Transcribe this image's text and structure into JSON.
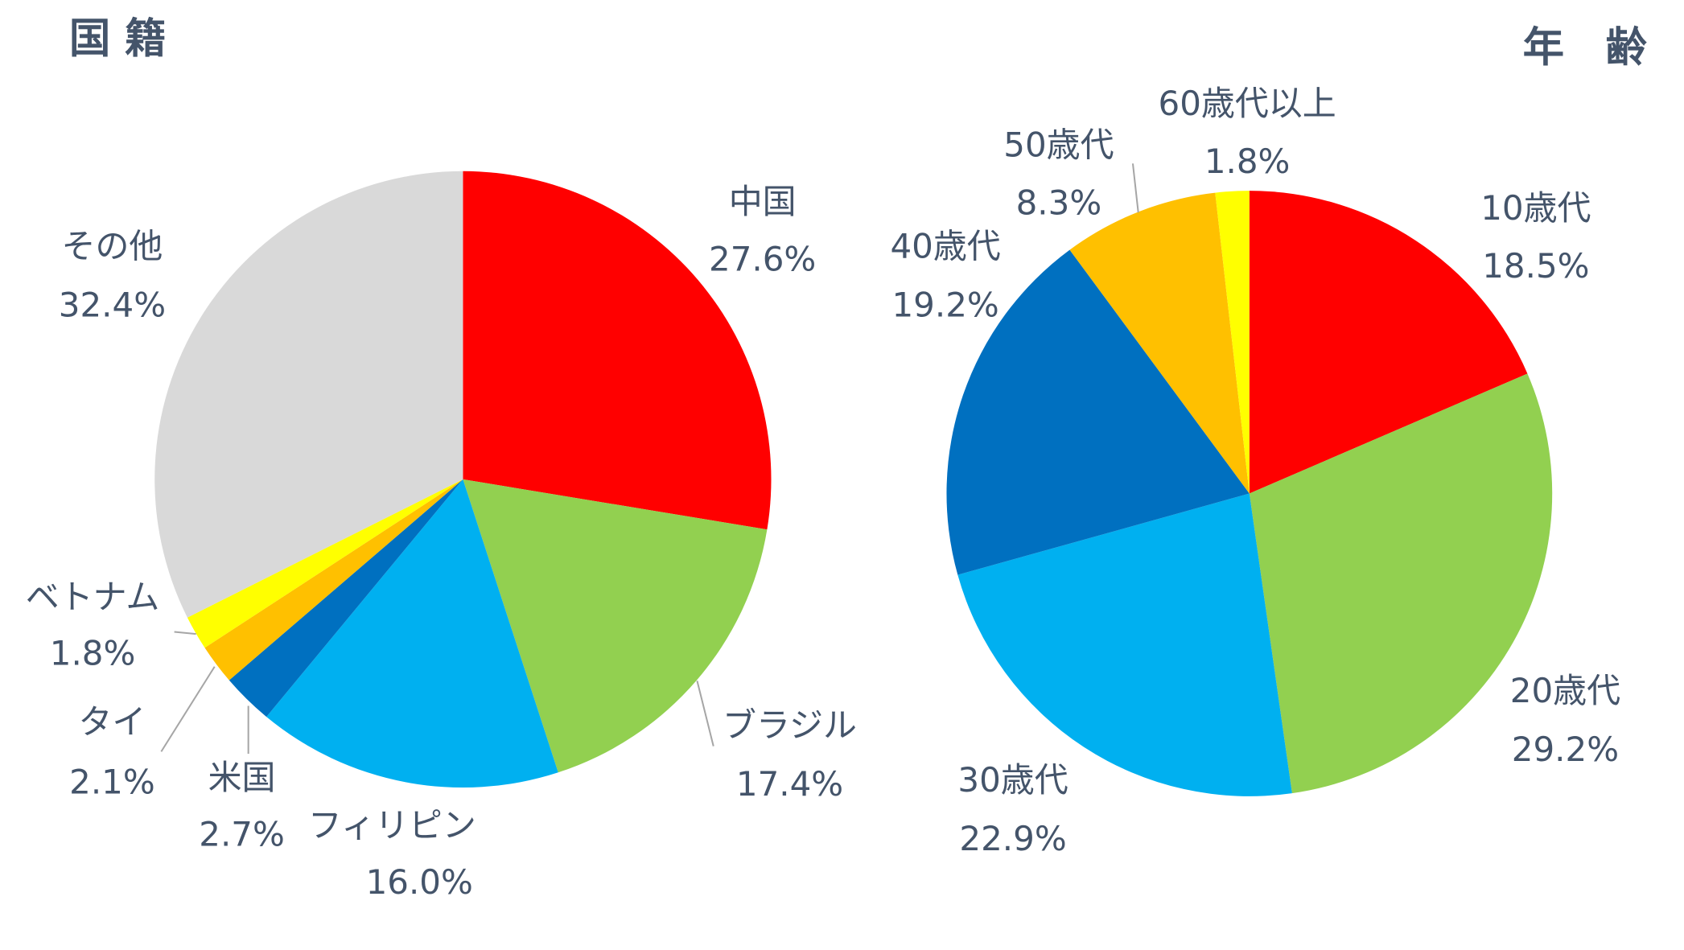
{
  "chart_data": [
    {
      "type": "pie",
      "title": "国 籍",
      "categories": [
        "中国",
        "ブラジル",
        "フィリピン",
        "米国",
        "タイ",
        "ベトナム",
        "その他"
      ],
      "values": [
        27.6,
        17.4,
        16.0,
        2.7,
        2.1,
        1.8,
        32.4
      ],
      "value_labels": [
        "27.6%",
        "17.4%",
        "16.0%",
        "2.7%",
        "2.1%",
        "1.8%",
        "32.4%"
      ],
      "colors": [
        "#ff0000",
        "#92d050",
        "#00b0f0",
        "#0070c0",
        "#ffc000",
        "#ffff00",
        "#d9d9d9"
      ]
    },
    {
      "type": "pie",
      "title": "年　齢",
      "categories": [
        "10歳代",
        "20歳代",
        "30歳代",
        "40歳代",
        "50歳代",
        "60歳代以上"
      ],
      "values": [
        18.5,
        29.2,
        22.9,
        19.2,
        8.3,
        1.8
      ],
      "value_labels": [
        "18.5%",
        "29.2%",
        "22.9%",
        "19.2%",
        "8.3%",
        "1.8%"
      ],
      "colors": [
        "#ff0000",
        "#92d050",
        "#00b0f0",
        "#0070c0",
        "#ffc000",
        "#ffff00"
      ]
    }
  ]
}
